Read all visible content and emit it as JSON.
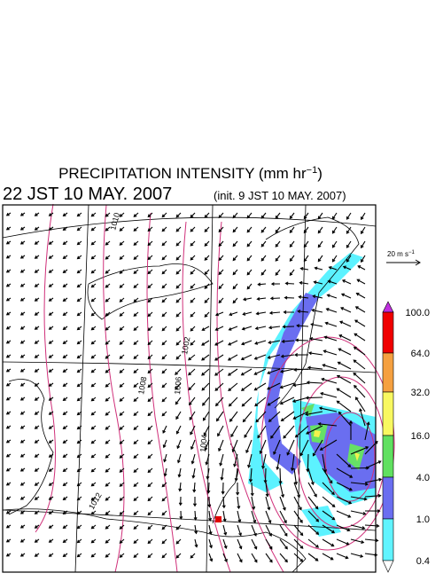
{
  "header": {
    "title_main": "PRECIPITATION INTENSITY (mm hr",
    "title_exponent": "−1",
    "title_close": ")",
    "valid_time": "22 JST 10 MAY. 2007",
    "init_time": "(init. 9 JST 10 MAY. 2007)"
  },
  "vector_legend": {
    "label_main": "20 m s",
    "label_exponent": "−1"
  },
  "colorbar": {
    "labels": [
      "100.0",
      "64.0",
      "32.0",
      "16.0",
      "4.0",
      "1.0",
      "0.4"
    ]
  },
  "contour_labels": [
    "1012",
    "1008",
    "1006",
    "1004",
    "1002",
    "1010"
  ]
}
